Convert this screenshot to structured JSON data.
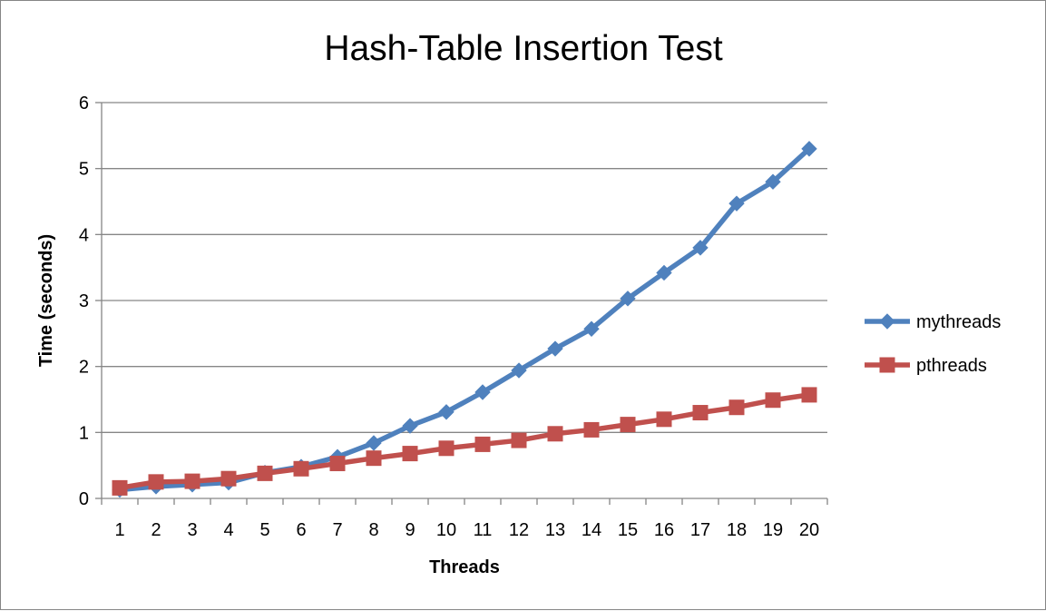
{
  "chart_data": {
    "type": "line",
    "title": "Hash-Table Insertion Test",
    "xlabel": "Threads",
    "ylabel": "Time (seconds)",
    "categories": [
      "1",
      "2",
      "3",
      "4",
      "5",
      "6",
      "7",
      "8",
      "9",
      "10",
      "11",
      "12",
      "13",
      "14",
      "15",
      "16",
      "17",
      "18",
      "19",
      "20"
    ],
    "ylim": [
      0,
      6
    ],
    "yticks": [
      "0",
      "1",
      "2",
      "3",
      "4",
      "5",
      "6"
    ],
    "grid": true,
    "legend_position": "right",
    "series": [
      {
        "name": "mythreads",
        "color": "#4f81bd",
        "marker": "diamond",
        "values": [
          0.13,
          0.18,
          0.21,
          0.24,
          0.39,
          0.48,
          0.63,
          0.84,
          1.1,
          1.31,
          1.61,
          1.94,
          2.27,
          2.57,
          3.03,
          3.42,
          3.8,
          4.47,
          4.8,
          5.3
        ]
      },
      {
        "name": "pthreads",
        "color": "#c0504d",
        "marker": "square",
        "values": [
          0.16,
          0.25,
          0.26,
          0.3,
          0.38,
          0.45,
          0.53,
          0.61,
          0.68,
          0.76,
          0.82,
          0.88,
          0.98,
          1.04,
          1.12,
          1.2,
          1.3,
          1.38,
          1.49,
          1.57
        ]
      }
    ]
  }
}
